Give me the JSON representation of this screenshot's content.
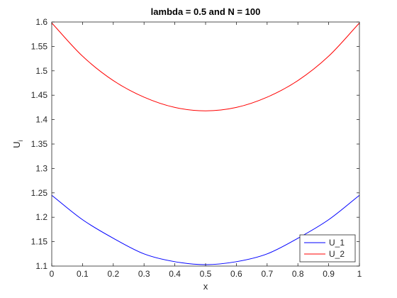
{
  "chart_data": {
    "type": "line",
    "title": "lambda = 0.5 and N = 100",
    "xlabel": "x",
    "ylabel": "U_i",
    "xlim": [
      0,
      1
    ],
    "ylim": [
      1.1,
      1.6
    ],
    "xticks": [
      "0",
      "0.1",
      "0.2",
      "0.3",
      "0.4",
      "0.5",
      "0.6",
      "0.7",
      "0.8",
      "0.9",
      "1"
    ],
    "yticks": [
      "1.1",
      "1.15",
      "1.2",
      "1.25",
      "1.3",
      "1.35",
      "1.4",
      "1.45",
      "1.5",
      "1.55",
      "1.6"
    ],
    "grid": false,
    "legend_position": "bottom-right",
    "series": [
      {
        "name": "U_1",
        "color": "#0000ff",
        "x": [
          0,
          0.1,
          0.2,
          0.3,
          0.4,
          0.5,
          0.6,
          0.7,
          0.8,
          0.9,
          1
        ],
        "y": [
          1.245,
          1.195,
          1.157,
          1.125,
          1.109,
          1.103,
          1.109,
          1.125,
          1.157,
          1.195,
          1.245
        ]
      },
      {
        "name": "U_2",
        "color": "#ff0000",
        "x": [
          0,
          0.1,
          0.2,
          0.3,
          0.4,
          0.5,
          0.6,
          0.7,
          0.8,
          0.9,
          1
        ],
        "y": [
          1.598,
          1.53,
          1.48,
          1.446,
          1.425,
          1.418,
          1.425,
          1.446,
          1.48,
          1.53,
          1.598
        ]
      }
    ]
  }
}
